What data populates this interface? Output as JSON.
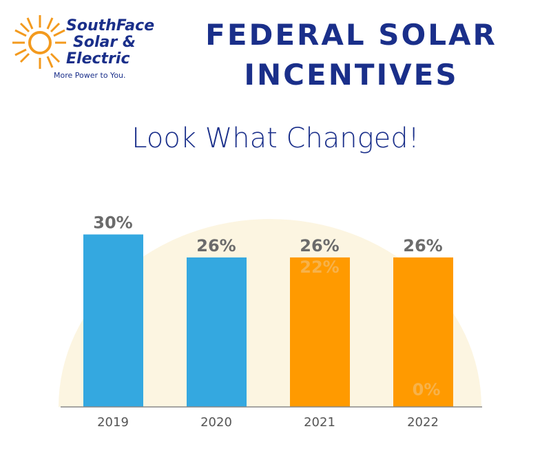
{
  "logo": {
    "lines": [
      "SouthFace",
      "Solar &",
      "Electric"
    ],
    "tagline": "More Power to You."
  },
  "chart_data": {
    "type": "bar",
    "title": "FEDERAL SOLAR INCENTIVES",
    "subtitle": "Look What Changed!",
    "categories": [
      "2019",
      "2020",
      "2021",
      "2022"
    ],
    "values": [
      30,
      26,
      26,
      26
    ],
    "value_labels": [
      "30%",
      "26%",
      "26%",
      "26%"
    ],
    "colors": [
      "#34a8e0",
      "#34a8e0",
      "#ff9a00",
      "#ff9a00"
    ],
    "annotations": [
      "22%",
      "0%"
    ],
    "ylim": [
      0,
      40
    ]
  }
}
